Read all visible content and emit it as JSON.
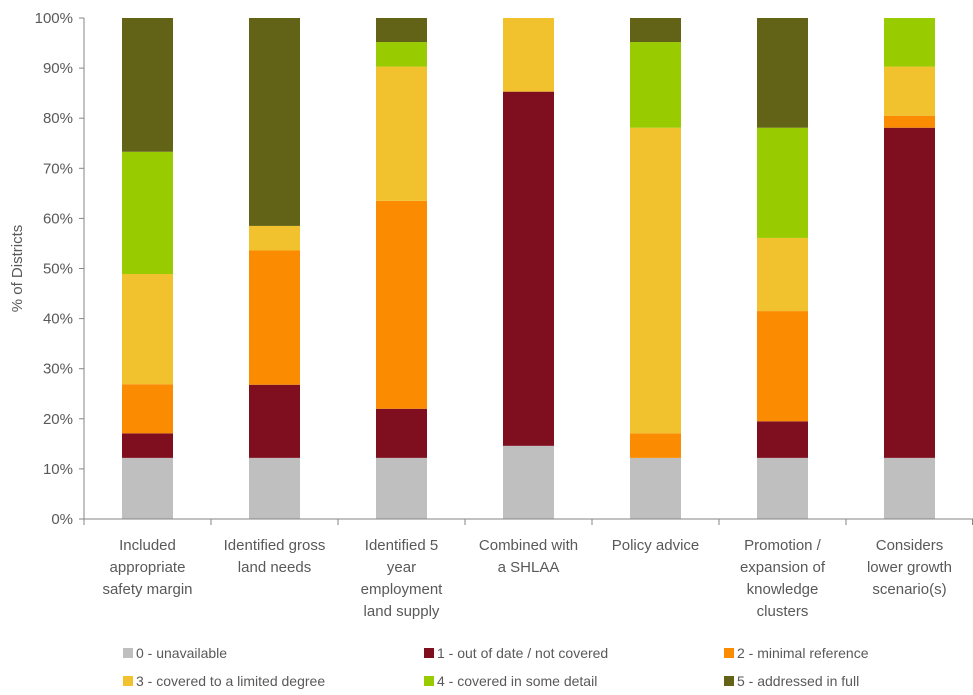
{
  "chart_data": {
    "type": "bar",
    "stacked": true,
    "categories": [
      "Included appropriate safety margin",
      "Identified gross land needs",
      "Identified 5 year employment land supply",
      "Combined with a SHLAA",
      "Policy advice",
      "Promotion / expansion of knowledge clusters",
      "Considers lower growth scenario(s)"
    ],
    "category_lines": [
      [
        "Included",
        "appropriate",
        "safety margin"
      ],
      [
        "Identified gross",
        "land needs"
      ],
      [
        "Identified 5",
        "year",
        "employment",
        "land supply"
      ],
      [
        "Combined with",
        "a SHLAA"
      ],
      [
        "Policy advice"
      ],
      [
        "Promotion /",
        "expansion of",
        "knowledge",
        "clusters"
      ],
      [
        "Considers",
        "lower growth",
        "scenario(s)"
      ]
    ],
    "series": [
      {
        "name": "0 - unavailable",
        "color": "#bfbfbf",
        "values": [
          12.2,
          12.2,
          12.2,
          14.6,
          12.2,
          12.2,
          12.2
        ]
      },
      {
        "name": "1 - out of date / not covered",
        "color": "#7f0f1f",
        "values": [
          4.9,
          14.6,
          9.8,
          70.7,
          0,
          7.3,
          65.9
        ]
      },
      {
        "name": "2 - minimal reference",
        "color": "#fb8b00",
        "values": [
          9.8,
          26.8,
          41.5,
          0,
          4.9,
          22.0,
          2.4
        ]
      },
      {
        "name": "3 - covered to a limited degree",
        "color": "#f2c12e",
        "values": [
          22.0,
          4.9,
          26.8,
          14.7,
          61.0,
          14.6,
          9.8
        ]
      },
      {
        "name": "4 - covered in some detail",
        "color": "#99cc00",
        "values": [
          24.4,
          0,
          4.9,
          0,
          17.1,
          22.0,
          9.7
        ]
      },
      {
        "name": "5 - addressed in full",
        "color": "#636317",
        "values": [
          26.7,
          41.5,
          4.8,
          0,
          4.8,
          21.9,
          0
        ]
      }
    ],
    "ylabel": "% of Districts",
    "xlabel": "",
    "ylim": [
      0,
      100
    ],
    "yticks": [
      "0%",
      "10%",
      "20%",
      "30%",
      "40%",
      "50%",
      "60%",
      "70%",
      "80%",
      "90%",
      "100%"
    ],
    "grid": false,
    "legend_position": "bottom"
  }
}
